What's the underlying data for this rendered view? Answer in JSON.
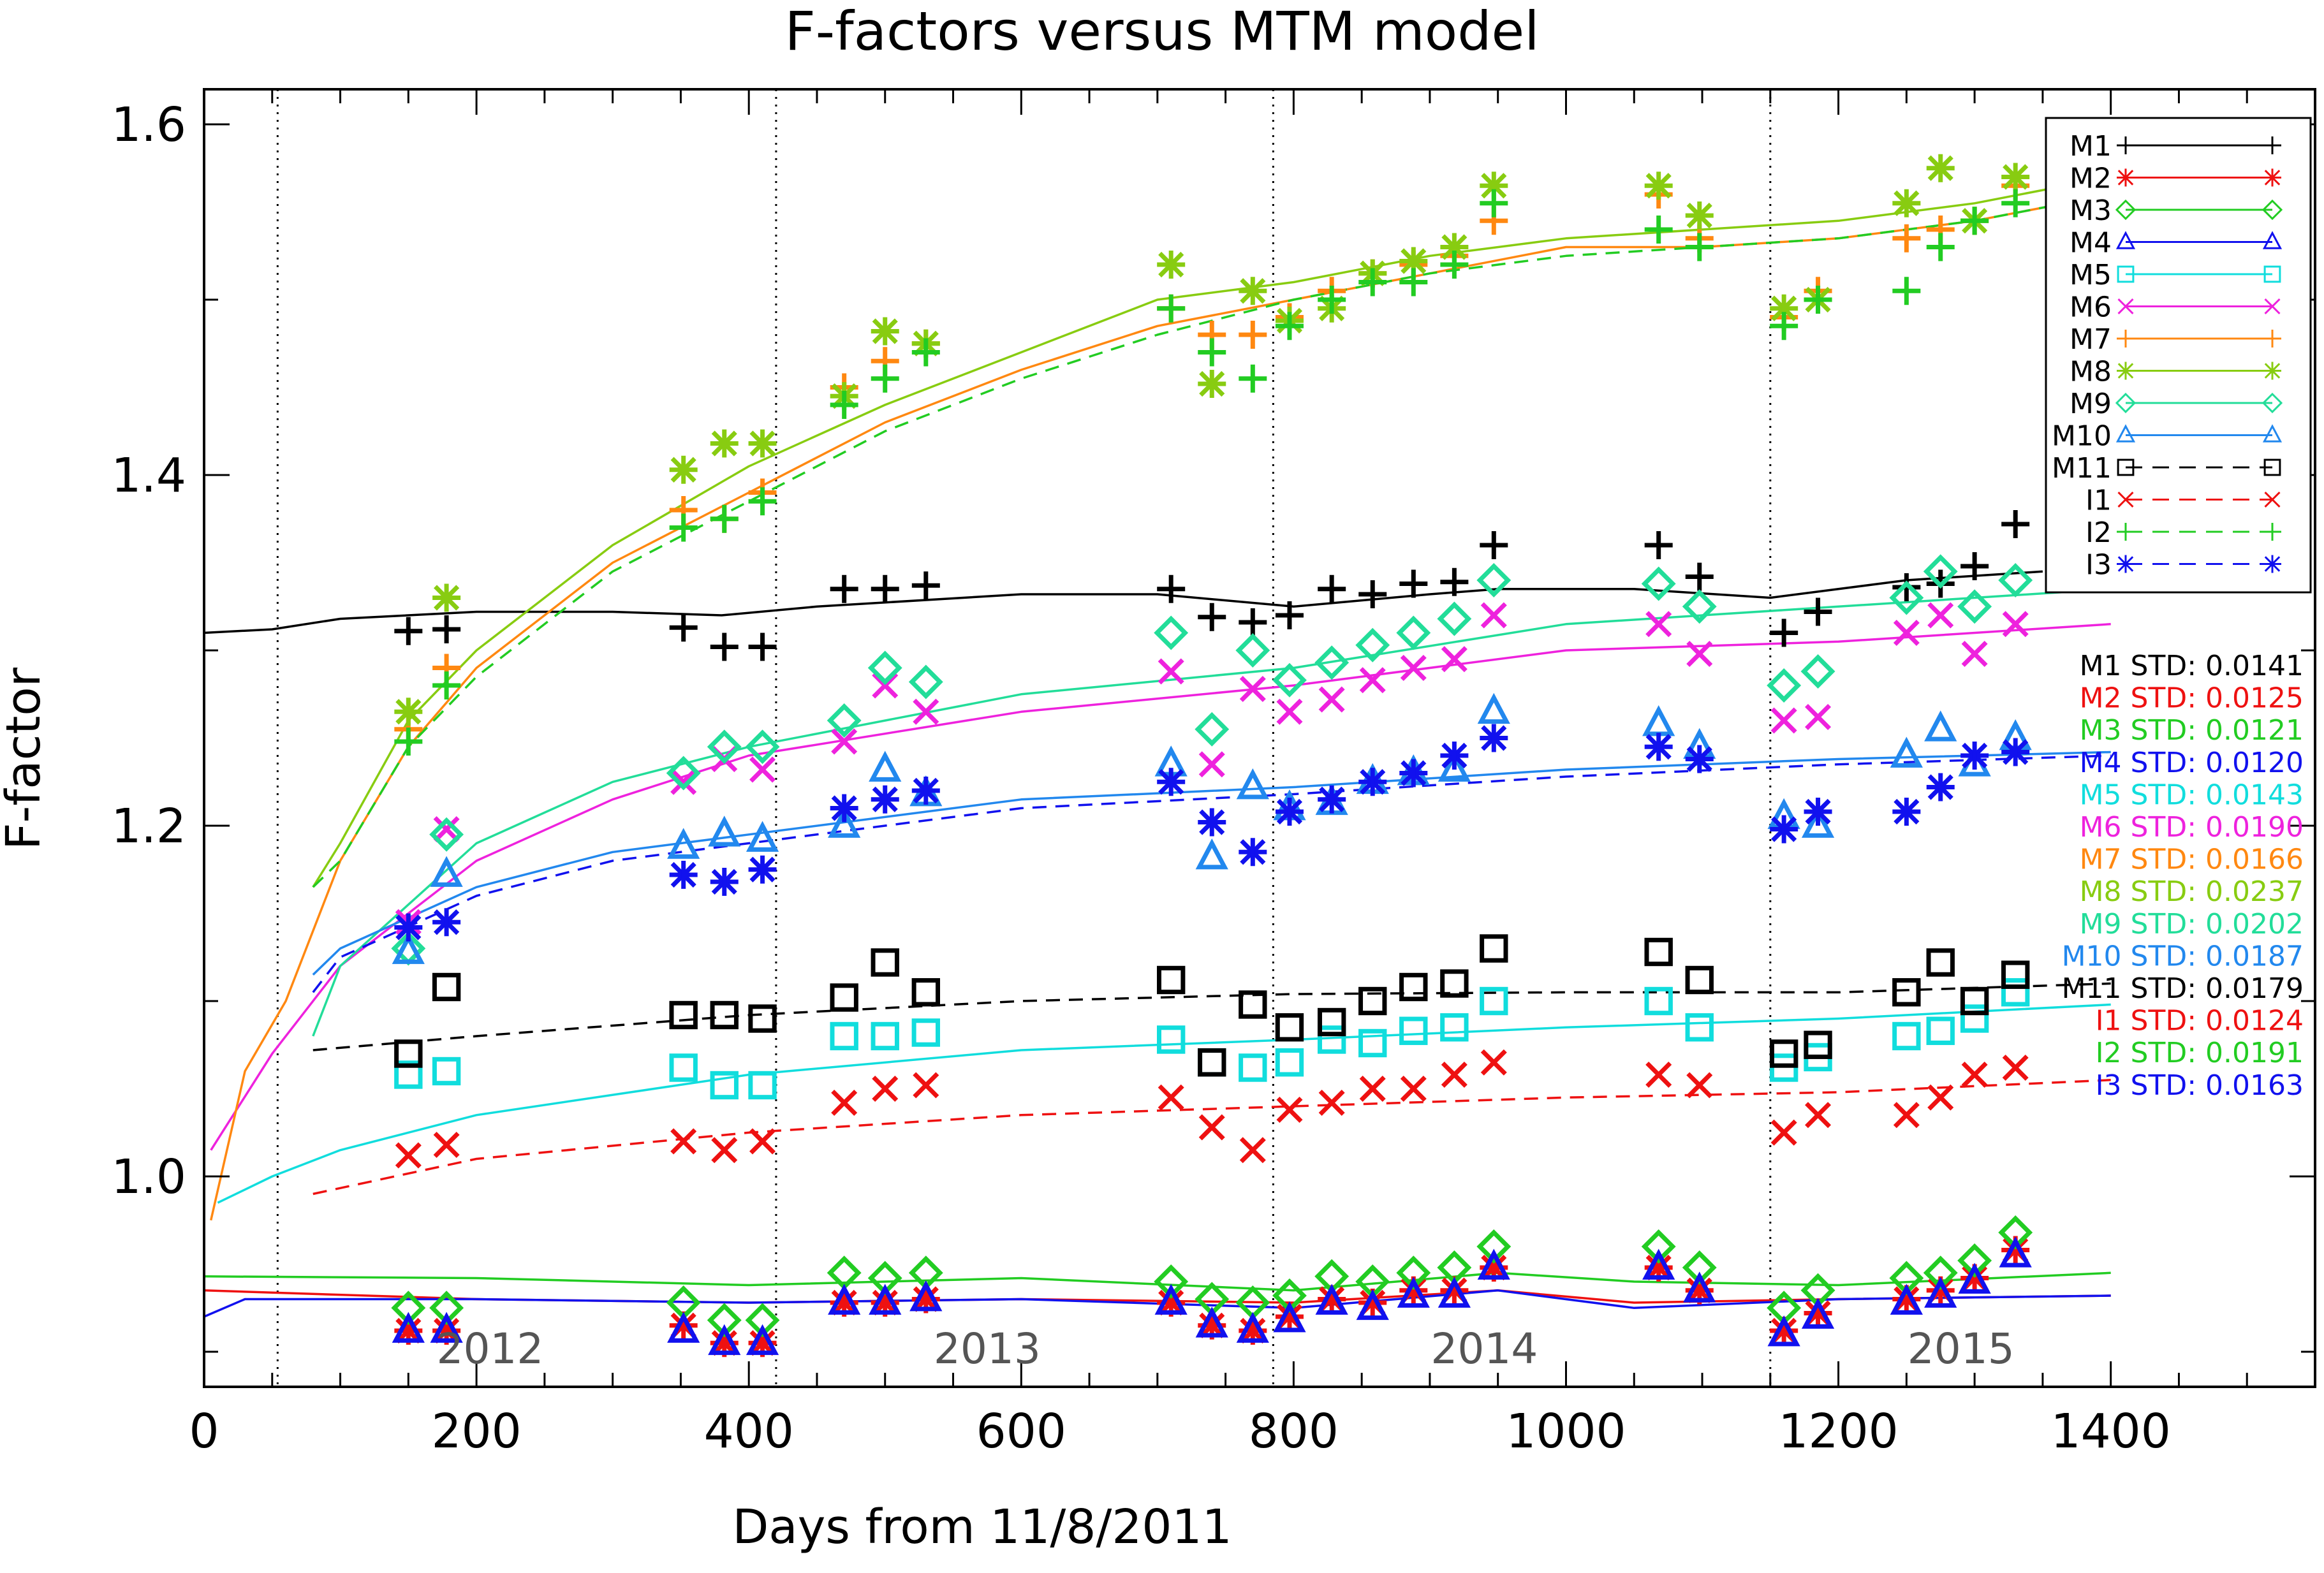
{
  "chart_data": {
    "type": "line",
    "title": "F-factors versus MTM model",
    "xlabel": "Days from 11/8/2011",
    "ylabel": "F-factor",
    "xlim": [
      0,
      1550
    ],
    "ylim": [
      0.88,
      1.62
    ],
    "xticks_major": [
      0,
      200,
      400,
      600,
      800,
      1000,
      1200,
      1400
    ],
    "xtick_labels": [
      "0",
      "200",
      "400",
      "600",
      "800",
      "1000",
      "1200",
      "1400"
    ],
    "xticks_minor_step": 50,
    "yticks_major": [
      1.0,
      1.2,
      1.4,
      1.6
    ],
    "ytick_labels": [
      "1.0",
      "1.2",
      "1.4",
      "1.6"
    ],
    "yticks_minor_step": 0.1,
    "year_boundaries": [
      54,
      420,
      785,
      1150
    ],
    "year_labels": [
      {
        "text": "2012",
        "x": 210
      },
      {
        "text": "2013",
        "x": 575
      },
      {
        "text": "2014",
        "x": 940
      },
      {
        "text": "2015",
        "x": 1290
      }
    ],
    "obs_days": [
      150,
      178,
      352,
      382,
      410,
      470,
      500,
      530,
      710,
      740,
      770,
      797,
      828,
      858,
      888,
      918,
      947,
      1068,
      1098,
      1160,
      1185,
      1250,
      1275,
      1300,
      1330
    ],
    "series": [
      {
        "name": "M1",
        "color": "#000000",
        "marker": "plus",
        "line": "solid",
        "std_label": "M1 STD: 0.0141",
        "model": [
          [
            0,
            1.31
          ],
          [
            50,
            1.312
          ],
          [
            100,
            1.318
          ],
          [
            200,
            1.322
          ],
          [
            300,
            1.322
          ],
          [
            380,
            1.32
          ],
          [
            450,
            1.325
          ],
          [
            600,
            1.332
          ],
          [
            700,
            1.332
          ],
          [
            800,
            1.325
          ],
          [
            900,
            1.332
          ],
          [
            950,
            1.335
          ],
          [
            1050,
            1.335
          ],
          [
            1150,
            1.33
          ],
          [
            1250,
            1.34
          ],
          [
            1350,
            1.345
          ]
        ],
        "obs": [
          1.311,
          1.312,
          1.313,
          1.302,
          1.302,
          1.335,
          1.335,
          1.337,
          1.335,
          1.319,
          1.316,
          1.32,
          1.335,
          1.332,
          1.338,
          1.339,
          1.36,
          1.36,
          1.342,
          1.31,
          1.322,
          1.336,
          1.338,
          1.348,
          1.372
        ]
      },
      {
        "name": "M2",
        "color": "#ee1111",
        "marker": "asterisk",
        "line": "solid",
        "std_label": "M2 STD: 0.0125",
        "model": [
          [
            0,
            0.935
          ],
          [
            200,
            0.93
          ],
          [
            400,
            0.928
          ],
          [
            600,
            0.93
          ],
          [
            800,
            0.928
          ],
          [
            950,
            0.935
          ],
          [
            1050,
            0.928
          ],
          [
            1200,
            0.93
          ],
          [
            1400,
            0.932
          ]
        ],
        "obs": [
          0.912,
          0.912,
          0.915,
          0.905,
          0.905,
          0.928,
          0.928,
          0.93,
          0.928,
          0.915,
          0.912,
          0.92,
          0.93,
          0.928,
          0.935,
          0.935,
          0.948,
          0.948,
          0.935,
          0.912,
          0.922,
          0.93,
          0.935,
          0.942,
          0.958
        ]
      },
      {
        "name": "M3",
        "color": "#22cc22",
        "marker": "diamond",
        "line": "solid",
        "std_label": "M3 STD: 0.0121",
        "model": [
          [
            0,
            0.943
          ],
          [
            200,
            0.942
          ],
          [
            400,
            0.938
          ],
          [
            600,
            0.942
          ],
          [
            800,
            0.935
          ],
          [
            950,
            0.945
          ],
          [
            1050,
            0.94
          ],
          [
            1200,
            0.938
          ],
          [
            1400,
            0.945
          ]
        ],
        "obs": [
          0.925,
          0.925,
          0.928,
          0.918,
          0.918,
          0.945,
          0.942,
          0.945,
          0.94,
          0.93,
          0.928,
          0.932,
          0.943,
          0.94,
          0.945,
          0.948,
          0.96,
          0.96,
          0.948,
          0.925,
          0.935,
          0.942,
          0.945,
          0.952,
          0.968
        ]
      },
      {
        "name": "M4",
        "color": "#1111ee",
        "marker": "triangle",
        "line": "solid",
        "std_label": "M4 STD: 0.0120",
        "model": [
          [
            0,
            0.92
          ],
          [
            30,
            0.93
          ],
          [
            200,
            0.93
          ],
          [
            400,
            0.928
          ],
          [
            600,
            0.93
          ],
          [
            800,
            0.925
          ],
          [
            950,
            0.935
          ],
          [
            1050,
            0.925
          ],
          [
            1200,
            0.93
          ],
          [
            1400,
            0.932
          ]
        ],
        "obs": [
          0.912,
          0.912,
          0.912,
          0.905,
          0.905,
          0.928,
          0.928,
          0.93,
          0.928,
          0.915,
          0.912,
          0.918,
          0.928,
          0.925,
          0.932,
          0.932,
          0.948,
          0.948,
          0.935,
          0.91,
          0.92,
          0.928,
          0.932,
          0.94,
          0.955
        ]
      },
      {
        "name": "M5",
        "color": "#11dddd",
        "marker": "square",
        "line": "solid",
        "std_label": "M5 STD: 0.0143",
        "model": [
          [
            10,
            0.985
          ],
          [
            50,
            1.0
          ],
          [
            100,
            1.015
          ],
          [
            200,
            1.035
          ],
          [
            400,
            1.058
          ],
          [
            600,
            1.072
          ],
          [
            800,
            1.078
          ],
          [
            1000,
            1.085
          ],
          [
            1200,
            1.09
          ],
          [
            1400,
            1.098
          ]
        ],
        "obs": [
          1.058,
          1.06,
          1.062,
          1.052,
          1.052,
          1.08,
          1.08,
          1.082,
          1.078,
          1.065,
          1.062,
          1.065,
          1.078,
          1.076,
          1.083,
          1.085,
          1.1,
          1.1,
          1.085,
          1.062,
          1.068,
          1.08,
          1.083,
          1.09,
          1.105
        ]
      },
      {
        "name": "M6",
        "color": "#ee22dd",
        "marker": "x",
        "line": "solid",
        "std_label": "M6 STD: 0.0190",
        "model": [
          [
            5,
            1.015
          ],
          [
            50,
            1.07
          ],
          [
            100,
            1.12
          ],
          [
            200,
            1.18
          ],
          [
            300,
            1.215
          ],
          [
            400,
            1.24
          ],
          [
            600,
            1.265
          ],
          [
            800,
            1.28
          ],
          [
            1000,
            1.3
          ],
          [
            1200,
            1.305
          ],
          [
            1400,
            1.315
          ]
        ],
        "obs": [
          1.145,
          1.198,
          1.225,
          1.238,
          1.232,
          1.248,
          1.28,
          1.265,
          1.288,
          1.235,
          1.278,
          1.265,
          1.272,
          1.283,
          1.29,
          1.295,
          1.32,
          1.315,
          1.298,
          1.26,
          1.262,
          1.31,
          1.32,
          1.298,
          1.315
        ]
      },
      {
        "name": "M7",
        "color": "#ff8811",
        "marker": "plus",
        "line": "solid",
        "std_label": "M7 STD: 0.0166",
        "model": [
          [
            5,
            0.975
          ],
          [
            30,
            1.06
          ],
          [
            60,
            1.1
          ],
          [
            100,
            1.18
          ],
          [
            150,
            1.245
          ],
          [
            200,
            1.29
          ],
          [
            300,
            1.35
          ],
          [
            400,
            1.39
          ],
          [
            500,
            1.43
          ],
          [
            600,
            1.46
          ],
          [
            700,
            1.485
          ],
          [
            800,
            1.5
          ],
          [
            900,
            1.515
          ],
          [
            1000,
            1.53
          ],
          [
            1100,
            1.53
          ],
          [
            1200,
            1.535
          ],
          [
            1300,
            1.545
          ],
          [
            1400,
            1.56
          ]
        ],
        "obs": [
          1.255,
          1.29,
          1.38,
          1.375,
          1.39,
          1.45,
          1.465,
          1.475,
          1.495,
          1.48,
          1.48,
          1.49,
          1.505,
          1.515,
          1.52,
          1.525,
          1.545,
          1.56,
          1.535,
          1.49,
          1.505,
          1.535,
          1.54,
          1.545,
          1.565
        ]
      },
      {
        "name": "M8",
        "color": "#88cc11",
        "marker": "asterisk",
        "line": "solid",
        "std_label": "M8 STD: 0.0237",
        "model": [
          [
            80,
            1.165
          ],
          [
            100,
            1.19
          ],
          [
            150,
            1.26
          ],
          [
            200,
            1.3
          ],
          [
            300,
            1.36
          ],
          [
            400,
            1.405
          ],
          [
            500,
            1.44
          ],
          [
            600,
            1.47
          ],
          [
            700,
            1.5
          ],
          [
            800,
            1.51
          ],
          [
            900,
            1.525
          ],
          [
            1000,
            1.535
          ],
          [
            1100,
            1.54
          ],
          [
            1200,
            1.545
          ],
          [
            1300,
            1.555
          ],
          [
            1400,
            1.57
          ]
        ],
        "obs": [
          1.265,
          1.33,
          1.403,
          1.418,
          1.418,
          1.445,
          1.482,
          1.475,
          1.52,
          1.452,
          1.505,
          1.488,
          1.495,
          1.515,
          1.522,
          1.53,
          1.565,
          1.565,
          1.548,
          1.495,
          1.5,
          1.555,
          1.575,
          1.545,
          1.57
        ]
      },
      {
        "name": "M9",
        "color": "#22dd99",
        "marker": "diamond",
        "line": "solid",
        "std_label": "M9 STD: 0.0202",
        "model": [
          [
            80,
            1.08
          ],
          [
            100,
            1.12
          ],
          [
            200,
            1.19
          ],
          [
            300,
            1.225
          ],
          [
            400,
            1.245
          ],
          [
            600,
            1.275
          ],
          [
            800,
            1.29
          ],
          [
            1000,
            1.315
          ],
          [
            1200,
            1.325
          ],
          [
            1400,
            1.335
          ]
        ],
        "obs": [
          1.13,
          1.195,
          1.23,
          1.245,
          1.245,
          1.26,
          1.29,
          1.282,
          1.31,
          1.255,
          1.3,
          1.283,
          1.293,
          1.303,
          1.31,
          1.318,
          1.34,
          1.338,
          1.325,
          1.28,
          1.288,
          1.33,
          1.345,
          1.325,
          1.34
        ]
      },
      {
        "name": "M10",
        "color": "#2288ee",
        "marker": "triangle",
        "line": "solid",
        "std_label": "M10 STD: 0.0187",
        "model": [
          [
            80,
            1.115
          ],
          [
            100,
            1.13
          ],
          [
            200,
            1.165
          ],
          [
            300,
            1.185
          ],
          [
            400,
            1.195
          ],
          [
            600,
            1.215
          ],
          [
            800,
            1.222
          ],
          [
            1000,
            1.232
          ],
          [
            1200,
            1.238
          ],
          [
            1400,
            1.242
          ]
        ],
        "obs": [
          1.128,
          1.172,
          1.188,
          1.195,
          1.192,
          1.2,
          1.232,
          1.218,
          1.235,
          1.182,
          1.222,
          1.21,
          1.213,
          1.225,
          1.23,
          1.232,
          1.265,
          1.258,
          1.245,
          1.205,
          1.2,
          1.24,
          1.255,
          1.235,
          1.25
        ]
      },
      {
        "name": "M11",
        "color": "#000000",
        "marker": "square",
        "line": "dash",
        "std_label": "M11 STD: 0.0179",
        "model": [
          [
            80,
            1.072
          ],
          [
            200,
            1.08
          ],
          [
            400,
            1.092
          ],
          [
            600,
            1.1
          ],
          [
            800,
            1.104
          ],
          [
            1000,
            1.105
          ],
          [
            1200,
            1.105
          ],
          [
            1400,
            1.11
          ]
        ],
        "obs": [
          1.07,
          1.108,
          1.092,
          1.092,
          1.09,
          1.102,
          1.122,
          1.105,
          1.112,
          1.065,
          1.098,
          1.085,
          1.088,
          1.1,
          1.108,
          1.11,
          1.13,
          1.128,
          1.112,
          1.07,
          1.075,
          1.105,
          1.122,
          1.1,
          1.115
        ]
      },
      {
        "name": "I1",
        "color": "#ee1111",
        "marker": "x",
        "line": "dash",
        "std_label": "I1 STD: 0.0124",
        "model": [
          [
            80,
            0.99
          ],
          [
            200,
            1.01
          ],
          [
            400,
            1.025
          ],
          [
            600,
            1.035
          ],
          [
            800,
            1.04
          ],
          [
            1000,
            1.045
          ],
          [
            1200,
            1.048
          ],
          [
            1400,
            1.055
          ]
        ],
        "obs": [
          1.012,
          1.018,
          1.02,
          1.015,
          1.02,
          1.042,
          1.05,
          1.052,
          1.045,
          1.028,
          1.015,
          1.038,
          1.042,
          1.05,
          1.05,
          1.058,
          1.065,
          1.058,
          1.052,
          1.025,
          1.035,
          1.035,
          1.045,
          1.058,
          1.062
        ]
      },
      {
        "name": "I2",
        "color": "#22cc22",
        "marker": "plus",
        "line": "dash",
        "std_label": "I2 STD: 0.0191",
        "model": [
          [
            80,
            1.165
          ],
          [
            100,
            1.18
          ],
          [
            150,
            1.245
          ],
          [
            200,
            1.285
          ],
          [
            300,
            1.345
          ],
          [
            400,
            1.385
          ],
          [
            500,
            1.425
          ],
          [
            600,
            1.455
          ],
          [
            700,
            1.48
          ],
          [
            800,
            1.5
          ],
          [
            900,
            1.515
          ],
          [
            1000,
            1.525
          ],
          [
            1100,
            1.53
          ],
          [
            1200,
            1.535
          ],
          [
            1300,
            1.545
          ],
          [
            1400,
            1.56
          ]
        ],
        "obs": [
          1.248,
          1.28,
          1.37,
          1.375,
          1.385,
          1.44,
          1.455,
          1.47,
          1.495,
          1.47,
          1.455,
          1.485,
          1.5,
          1.51,
          1.51,
          1.52,
          1.555,
          1.54,
          1.53,
          1.485,
          1.5,
          1.505,
          1.53,
          1.545,
          1.555
        ]
      },
      {
        "name": "I3",
        "color": "#1111ee",
        "marker": "asterisk",
        "line": "dash",
        "std_label": "I3 STD: 0.0163",
        "model": [
          [
            80,
            1.105
          ],
          [
            100,
            1.125
          ],
          [
            200,
            1.16
          ],
          [
            300,
            1.18
          ],
          [
            400,
            1.19
          ],
          [
            600,
            1.21
          ],
          [
            800,
            1.218
          ],
          [
            1000,
            1.228
          ],
          [
            1200,
            1.235
          ],
          [
            1400,
            1.24
          ]
        ],
        "obs": [
          1.142,
          1.145,
          1.172,
          1.168,
          1.175,
          1.21,
          1.215,
          1.22,
          1.225,
          1.202,
          1.185,
          1.208,
          1.215,
          1.225,
          1.23,
          1.24,
          1.25,
          1.245,
          1.238,
          1.198,
          1.208,
          1.208,
          1.222,
          1.24,
          1.242
        ]
      }
    ]
  }
}
